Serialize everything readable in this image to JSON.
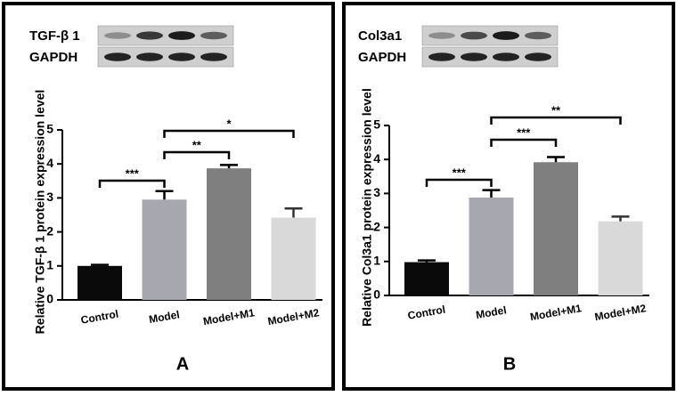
{
  "chart_data": [
    {
      "type": "bar",
      "panel_label": "A",
      "blot_labels": [
        "TGF-β 1",
        "GAPDH"
      ],
      "y_label": "Relative TGF-β 1 protein expression level",
      "categories": [
        "Control",
        "Model",
        "Model+M1",
        "Model+M2"
      ],
      "values": [
        1.0,
        2.95,
        3.87,
        2.42
      ],
      "errors": [
        0.03,
        0.25,
        0.1,
        0.27
      ],
      "colors": [
        "#0a0a0a",
        "#a7a7b0",
        "#7f7f7f",
        "#d9d9d9"
      ],
      "significance": [
        "***",
        "**",
        "*"
      ],
      "ylim": [
        0,
        5
      ],
      "yticks": [
        0,
        1,
        2,
        3,
        4,
        5
      ]
    },
    {
      "type": "bar",
      "panel_label": "B",
      "blot_labels": [
        "Col3a1",
        "GAPDH"
      ],
      "y_label": "Relative Col3a1 protein expression level",
      "categories": [
        "Control",
        "Model",
        "Model+M1",
        "Model+M2"
      ],
      "values": [
        0.98,
        2.88,
        3.92,
        2.18
      ],
      "errors": [
        0.05,
        0.22,
        0.15,
        0.14
      ],
      "colors": [
        "#0a0a0a",
        "#a7a7b0",
        "#7f7f7f",
        "#d9d9d9"
      ],
      "significance": [
        "***",
        "***",
        "**"
      ],
      "ylim": [
        0,
        5
      ],
      "yticks": [
        0,
        1,
        2,
        3,
        4,
        5
      ]
    }
  ]
}
